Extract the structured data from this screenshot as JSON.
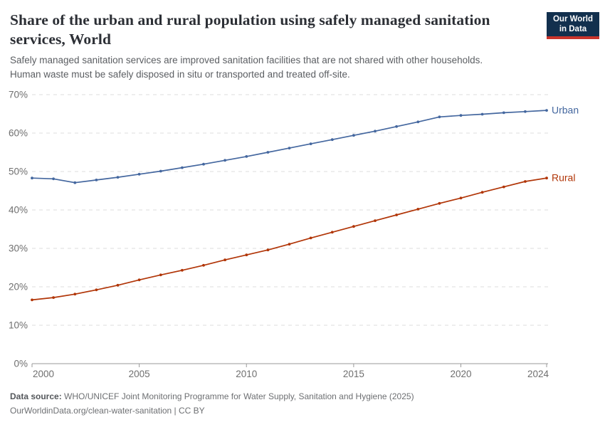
{
  "header": {
    "title": "Share of the urban and rural population using safely managed sanitation services, World",
    "subtitle_line1": "Safely managed sanitation services are improved sanitation facilities that are not shared with other households.",
    "subtitle_line2": "Human waste must be safely disposed in situ or transported and treated off-site.",
    "logo": {
      "line1": "Our World",
      "line2": "in Data",
      "bg_color": "#12304e",
      "accent_color": "#c9342b"
    }
  },
  "chart_data": {
    "type": "line",
    "title": "Share of the urban and rural population using safely managed sanitation services, World",
    "x": [
      2000,
      2001,
      2002,
      2003,
      2004,
      2005,
      2006,
      2007,
      2008,
      2009,
      2010,
      2011,
      2012,
      2013,
      2014,
      2015,
      2016,
      2017,
      2018,
      2019,
      2020,
      2021,
      2022,
      2023,
      2024
    ],
    "series": [
      {
        "name": "Urban",
        "color": "#44679f",
        "values": [
          48.3,
          48.1,
          47.1,
          47.8,
          48.5,
          49.3,
          50.1,
          51.0,
          51.9,
          52.9,
          53.9,
          55.0,
          56.1,
          57.2,
          58.3,
          59.4,
          60.5,
          61.7,
          62.9,
          64.2,
          64.6,
          64.9,
          65.3,
          65.6,
          65.9
        ]
      },
      {
        "name": "Rural",
        "color": "#b13507",
        "values": [
          16.6,
          17.2,
          18.1,
          19.2,
          20.4,
          21.8,
          23.1,
          24.3,
          25.6,
          27.0,
          28.3,
          29.6,
          31.1,
          32.7,
          34.2,
          35.7,
          37.2,
          38.7,
          40.2,
          41.7,
          43.1,
          44.6,
          46.0,
          47.4,
          48.3
        ]
      }
    ],
    "xlabel": "",
    "ylabel": "",
    "ylim": [
      0,
      70
    ],
    "yticks": [
      0,
      10,
      20,
      30,
      40,
      50,
      60,
      70
    ],
    "ytick_suffix": "%",
    "xticks": [
      2000,
      2005,
      2010,
      2015,
      2020,
      2024
    ],
    "grid": "horizontal-dashed",
    "grid_color": "#dcdcdc",
    "axis_color": "#9a9a9a",
    "tick_label_color": "#6f6f6f",
    "legend_position": "line-end-labels"
  },
  "footer": {
    "data_source_label": "Data source:",
    "data_source_text": "WHO/UNICEF Joint Monitoring Programme for Water Supply, Sanitation and Hygiene (2025)",
    "attribution": "OurWorldinData.org/clean-water-sanitation | CC BY"
  }
}
